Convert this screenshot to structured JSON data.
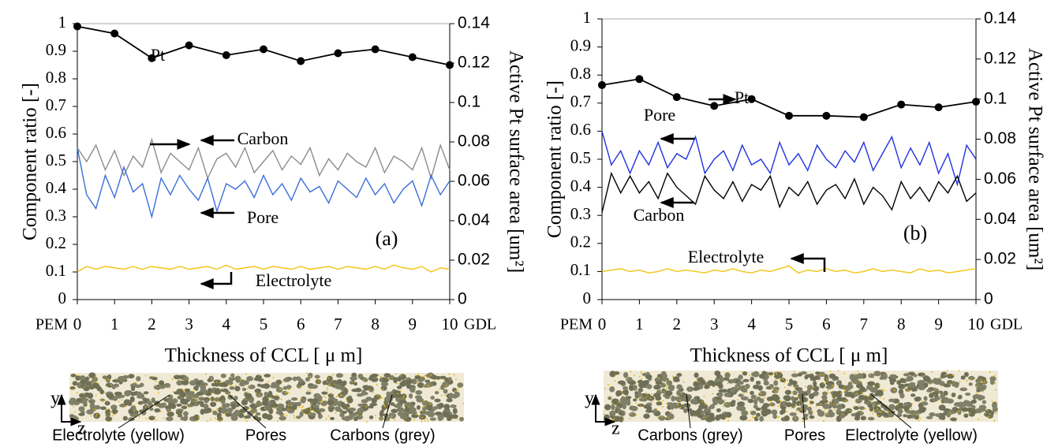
{
  "chart_data": [
    {
      "type": "line",
      "y_label": "Component ratio [-]",
      "y2_label": "Active Pt surface area [um²]",
      "x_label": "Thickness of CCL [ μ m]",
      "x_start_label": "PEM",
      "x_end_label": "GDL",
      "panel_label": "(a)",
      "annotations": [
        "Pt",
        "Carbon",
        "Pore",
        "Electrolyte"
      ],
      "xlim": [
        0,
        10
      ],
      "xticks": [
        0,
        1,
        2,
        3,
        4,
        5,
        6,
        7,
        8,
        9,
        10
      ],
      "ylim": [
        0,
        1
      ],
      "yticks": [
        0,
        0.1,
        0.2,
        0.3,
        0.4,
        0.5,
        0.6,
        0.7,
        0.8,
        0.9,
        1
      ],
      "y2lim": [
        0,
        0.14
      ],
      "y2ticks": [
        0,
        0.02,
        0.04,
        0.06,
        0.08,
        0.1,
        0.12,
        0.14
      ],
      "x": [
        0,
        0.25,
        0.5,
        0.75,
        1,
        1.25,
        1.5,
        1.75,
        2,
        2.25,
        2.5,
        2.75,
        3,
        3.25,
        3.5,
        3.75,
        4,
        4.25,
        4.5,
        4.75,
        5,
        5.25,
        5.5,
        5.75,
        6,
        6.25,
        6.5,
        6.75,
        7,
        7.25,
        7.5,
        7.75,
        8,
        8.25,
        8.5,
        8.75,
        9,
        9.25,
        9.5,
        9.75,
        10
      ],
      "series": [
        {
          "name": "Carbon",
          "color": "#8c8c8c",
          "values": [
            0.55,
            0.5,
            0.56,
            0.47,
            0.54,
            0.45,
            0.52,
            0.48,
            0.58,
            0.46,
            0.53,
            0.5,
            0.47,
            0.55,
            0.44,
            0.51,
            0.53,
            0.48,
            0.55,
            0.46,
            0.5,
            0.54,
            0.47,
            0.52,
            0.49,
            0.55,
            0.45,
            0.51,
            0.47,
            0.53,
            0.5,
            0.48,
            0.55,
            0.46,
            0.52,
            0.5,
            0.47,
            0.55,
            0.44,
            0.56,
            0.47
          ]
        },
        {
          "name": "Pore",
          "color": "#3a6fd8",
          "values": [
            0.55,
            0.38,
            0.33,
            0.45,
            0.37,
            0.48,
            0.39,
            0.42,
            0.3,
            0.44,
            0.38,
            0.45,
            0.4,
            0.36,
            0.44,
            0.32,
            0.42,
            0.4,
            0.43,
            0.37,
            0.45,
            0.38,
            0.42,
            0.36,
            0.44,
            0.39,
            0.41,
            0.35,
            0.43,
            0.4,
            0.37,
            0.44,
            0.38,
            0.42,
            0.35,
            0.4,
            0.43,
            0.34,
            0.45,
            0.38,
            0.43
          ]
        },
        {
          "name": "Electrolyte",
          "color": "#f2c413",
          "values": [
            0.1,
            0.12,
            0.11,
            0.12,
            0.115,
            0.11,
            0.12,
            0.11,
            0.12,
            0.115,
            0.11,
            0.12,
            0.11,
            0.115,
            0.12,
            0.11,
            0.125,
            0.11,
            0.115,
            0.12,
            0.11,
            0.12,
            0.115,
            0.11,
            0.12,
            0.11,
            0.115,
            0.12,
            0.11,
            0.12,
            0.115,
            0.11,
            0.12,
            0.11,
            0.125,
            0.115,
            0.11,
            0.12,
            0.1,
            0.115,
            0.11
          ]
        },
        {
          "name": "Pt",
          "color": "#000000",
          "axis": "y2",
          "markers": true,
          "x": [
            0,
            1,
            2,
            3,
            4,
            5,
            6,
            7,
            8,
            9,
            10
          ],
          "values": [
            0.1386,
            0.135,
            0.1225,
            0.129,
            0.124,
            0.127,
            0.121,
            0.125,
            0.127,
            0.123,
            0.119
          ]
        }
      ],
      "image_labels": {
        "axes": [
          "y",
          "z"
        ],
        "labels": [
          "Electrolyte (yellow)",
          "Pores",
          "Carbons (grey)"
        ]
      }
    },
    {
      "type": "line",
      "y_label": "Component ratio [-]",
      "y2_label": "Active Pt surface area [um²]",
      "x_label": "Thickness of CCL [ μ m]",
      "x_start_label": "PEM",
      "x_end_label": "GDL",
      "panel_label": "(b)",
      "annotations": [
        "Pt",
        "Pore",
        "Carbon",
        "Electrolyte"
      ],
      "xlim": [
        0,
        10
      ],
      "xticks": [
        0,
        1,
        2,
        3,
        4,
        5,
        6,
        7,
        8,
        9,
        10
      ],
      "ylim": [
        0,
        1
      ],
      "yticks": [
        0,
        0.1,
        0.2,
        0.3,
        0.4,
        0.5,
        0.6,
        0.7,
        0.8,
        0.9,
        1
      ],
      "y2lim": [
        0,
        0.14
      ],
      "y2ticks": [
        0,
        0.02,
        0.04,
        0.06,
        0.08,
        0.1,
        0.12,
        0.14
      ],
      "x": [
        0,
        0.25,
        0.5,
        0.75,
        1,
        1.25,
        1.5,
        1.75,
        2,
        2.25,
        2.5,
        2.75,
        3,
        3.25,
        3.5,
        3.75,
        4,
        4.25,
        4.5,
        4.75,
        5,
        5.25,
        5.5,
        5.75,
        6,
        6.25,
        6.5,
        6.75,
        7,
        7.25,
        7.5,
        7.75,
        8,
        8.25,
        8.5,
        8.75,
        9,
        9.25,
        9.5,
        9.75,
        10
      ],
      "series": [
        {
          "name": "Pore",
          "color": "#1f32e0",
          "values": [
            0.6,
            0.48,
            0.53,
            0.45,
            0.53,
            0.48,
            0.56,
            0.47,
            0.52,
            0.5,
            0.58,
            0.45,
            0.5,
            0.53,
            0.46,
            0.55,
            0.48,
            0.5,
            0.45,
            0.56,
            0.48,
            0.52,
            0.46,
            0.55,
            0.5,
            0.47,
            0.53,
            0.49,
            0.56,
            0.46,
            0.52,
            0.58,
            0.47,
            0.54,
            0.48,
            0.56,
            0.45,
            0.52,
            0.41,
            0.55,
            0.5
          ]
        },
        {
          "name": "Carbon",
          "color": "#000000",
          "values": [
            0.31,
            0.45,
            0.38,
            0.44,
            0.38,
            0.42,
            0.36,
            0.45,
            0.4,
            0.37,
            0.34,
            0.44,
            0.39,
            0.36,
            0.42,
            0.35,
            0.41,
            0.39,
            0.44,
            0.33,
            0.4,
            0.37,
            0.42,
            0.34,
            0.39,
            0.41,
            0.36,
            0.43,
            0.34,
            0.4,
            0.37,
            0.32,
            0.42,
            0.36,
            0.4,
            0.35,
            0.42,
            0.38,
            0.44,
            0.35,
            0.38
          ]
        },
        {
          "name": "Electrolyte",
          "color": "#f2c413",
          "values": [
            0.1,
            0.105,
            0.11,
            0.1,
            0.105,
            0.095,
            0.1,
            0.11,
            0.1,
            0.105,
            0.1,
            0.095,
            0.105,
            0.1,
            0.11,
            0.1,
            0.095,
            0.105,
            0.1,
            0.11,
            0.12,
            0.095,
            0.105,
            0.1,
            0.11,
            0.1,
            0.105,
            0.095,
            0.1,
            0.11,
            0.1,
            0.105,
            0.1,
            0.095,
            0.11,
            0.1,
            0.105,
            0.095,
            0.1,
            0.105,
            0.11
          ]
        },
        {
          "name": "Pt",
          "color": "#000000",
          "axis": "y2",
          "markers": true,
          "x": [
            0,
            1,
            2,
            3,
            4,
            5,
            6,
            7,
            8,
            9,
            10
          ],
          "values": [
            0.107,
            0.11,
            0.101,
            0.0966,
            0.1,
            0.0917,
            0.0917,
            0.091,
            0.0973,
            0.0959,
            0.0987
          ]
        }
      ],
      "image_labels": {
        "axes": [
          "y",
          "z"
        ],
        "labels": [
          "Carbons (grey)",
          "Pores",
          "Electrolyte (yellow)"
        ]
      }
    }
  ]
}
